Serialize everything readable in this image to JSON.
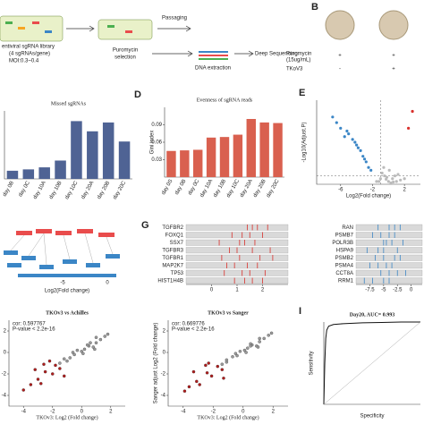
{
  "panel_a": {
    "library": "entiviral sgRNA library",
    "library_detail": "(4 sgRNAs/gene)",
    "moi": "MOI:0.3~0.4",
    "passaging": "Passaging",
    "puromycin": "Puromycin",
    "selection": "selection",
    "dna": "DNA extraction",
    "sequencing": "Deep Sequencing"
  },
  "panel_b": {
    "letter": "B",
    "puromycin": "Puromycin",
    "dose": "(15ug/mL)",
    "cell": "TKoV3",
    "row1": [
      "+",
      "+"
    ],
    "row2": [
      "-",
      "+"
    ]
  },
  "panel_f": {
    "x_label": "Log2(Fold change)",
    "ticks": [
      -5,
      0
    ]
  },
  "chart_data": [
    {
      "type": "bar",
      "title": "Missed sgRNAs",
      "color": "#4f6394",
      "categories": [
        "day 0B",
        "day 0C",
        "day 10A",
        "day 10B",
        "day 10C",
        "day 20A",
        "day 20B",
        "day 20C"
      ],
      "values": [
        12,
        14,
        17,
        27,
        85,
        70,
        83,
        55
      ],
      "ylim": [
        0,
        100
      ]
    },
    {
      "type": "bar",
      "panel": "D",
      "title": "Evenness of sgRNA reads",
      "y_label": "Gini index",
      "color": "#d9604f",
      "categories": [
        "day 0S",
        "day 0B",
        "day 0C",
        "day 10A",
        "day 10B",
        "day 10C",
        "day 20A",
        "day 20B",
        "day 20C"
      ],
      "values": [
        0.045,
        0.046,
        0.047,
        0.068,
        0.069,
        0.073,
        0.1,
        0.094,
        0.093
      ],
      "ylim": [
        0,
        0.12
      ],
      "yticks": [
        0.03,
        0.06,
        0.09
      ]
    },
    {
      "type": "scatter",
      "panel": "E",
      "x_label": "Log2(Fold change)",
      "y_label": "-Log10(Adjust.P)",
      "xlim": [
        -9,
        4
      ],
      "ylim": [
        0,
        30
      ],
      "xticks": [
        -6,
        -2,
        2
      ],
      "series": [
        {
          "color": "#bbbbbb",
          "x": [
            -1.5,
            -1,
            -0.5,
            0,
            0.5,
            1,
            -0.8,
            0.3,
            1.5,
            -0.2,
            0.8,
            -1.2,
            0.1,
            2,
            -0.6,
            0.6,
            1.2,
            -0.3
          ],
          "y": [
            1,
            2,
            3,
            1,
            2,
            1,
            4,
            0.5,
            1.5,
            2.5,
            3,
            1,
            5,
            2,
            6,
            0.8,
            3.5,
            1.8
          ]
        },
        {
          "color": "#3b86c6",
          "x": [
            -2.5,
            -3,
            -3.5,
            -4,
            -4.5,
            -5,
            -5.5,
            -6,
            -6.5,
            -3.2,
            -2.8,
            -4.2,
            -5.2,
            -3.8,
            -2.2,
            -7
          ],
          "y": [
            6,
            9,
            12,
            14,
            16,
            18,
            17,
            20,
            22,
            10,
            8,
            15,
            19,
            13,
            5,
            24
          ]
        },
        {
          "color": "#d9302c",
          "x": [
            2.5,
            3
          ],
          "y": [
            20,
            26
          ]
        }
      ]
    },
    {
      "type": "strip",
      "panel": "G",
      "color": "#d9302c",
      "categories": [
        "TGFBR2",
        "FOXQ1",
        "SSX7",
        "TGFBR3",
        "TGFBR1",
        "MAP2K7",
        "TP53",
        "HIST1H4B"
      ],
      "values": [
        [
          1.4,
          1.6,
          1.8,
          2.2
        ],
        [
          0.8,
          1.2,
          1.5,
          2.0
        ],
        [
          0.3,
          1.1,
          1.3,
          1.7
        ],
        [
          0.7,
          1.0,
          1.6,
          2.3
        ],
        [
          0.4,
          1.1,
          1.9,
          2.4
        ],
        [
          0.6,
          0.9,
          1.4,
          1.8
        ],
        [
          0.5,
          1.2,
          1.5,
          2.1
        ],
        [
          0.9,
          1.3,
          1.6,
          2.0
        ]
      ],
      "xlim": [
        -1,
        3
      ],
      "xticks": [
        0,
        1,
        2
      ]
    },
    {
      "type": "strip",
      "color": "#3b86c6",
      "categories": [
        "RAN",
        "PSMB7",
        "POLR3B",
        "HSPA9",
        "PSMB2",
        "PSMA4",
        "CCT8A",
        "RRM1"
      ],
      "values": [
        [
          -6,
          -4,
          -3,
          -2
        ],
        [
          -7,
          -5.5,
          -4,
          -3
        ],
        [
          -5,
          -4.5,
          -3.5,
          -1.5
        ],
        [
          -8,
          -6,
          -5,
          -2.5
        ],
        [
          -6.5,
          -5,
          -3,
          -2
        ],
        [
          -7.5,
          -6,
          -4.5,
          -3.5
        ],
        [
          -5.5,
          -4,
          -2.5,
          -1
        ],
        [
          -8.5,
          -7,
          -5,
          -4
        ]
      ],
      "xlim": [
        -10,
        2
      ],
      "xticks": [
        -7.5,
        -5,
        -2.5,
        0
      ]
    },
    {
      "type": "scatter",
      "title": "TKOv3 vs Achilles",
      "x_label": "TKOv3: Log2 (Fold change)",
      "annotations": [
        "cor: 0.597767",
        "P-value < 2.2e-16"
      ],
      "xlim": [
        -5,
        3
      ],
      "ylim": [
        -5,
        3
      ],
      "xticks": [
        -4,
        -2,
        0,
        2
      ],
      "yticks": [
        -4,
        -2,
        0,
        2
      ],
      "series": [
        {
          "color": "#9a9a9a",
          "x": [
            -1,
            -0.5,
            0,
            0.5,
            1,
            -1.5,
            -0.8,
            0.2,
            0.8,
            1.3,
            -0.3,
            0.6,
            1.6,
            -1.2,
            0.1,
            0.4,
            1,
            -0.6,
            1.8,
            0.9
          ],
          "y": [
            -0.8,
            -0.2,
            0.1,
            0.6,
            0.9,
            -1,
            -0.5,
            0.3,
            0.5,
            1.2,
            0.2,
            0.9,
            1.5,
            -0.6,
            -0.1,
            0.7,
            1.4,
            0,
            1.7,
            0.3
          ]
        },
        {
          "color": "#b01c1c",
          "x": [
            -3,
            -2.5,
            -2,
            -1.8,
            -3.5,
            -2.2,
            -1.5,
            -2.8,
            -4,
            -1.2,
            -2.6,
            -3.2
          ],
          "y": [
            -2.5,
            -1.8,
            -2,
            -1.2,
            -3,
            -0.8,
            -1.5,
            -2.9,
            -3.5,
            -2.2,
            -1.1,
            -1.6
          ]
        }
      ]
    },
    {
      "type": "scatter",
      "title": "TKOv3 vs Sanger",
      "x_label": "TKOv3: Log2 (Fold change)",
      "y_label": "Sanger adjust Log2 (Fold change)",
      "annotations": [
        "cor: 0.669776",
        "P-value < 2.2e-16"
      ],
      "xlim": [
        -5,
        3
      ],
      "ylim": [
        -5,
        3
      ],
      "xticks": [
        -4,
        -2,
        0,
        2
      ],
      "yticks": [
        -4,
        -2,
        0,
        2
      ],
      "series": [
        {
          "color": "#9a9a9a",
          "x": [
            -1.1,
            -0.4,
            0.1,
            0.6,
            1.1,
            -1.4,
            -0.7,
            0.3,
            0.9,
            1.4,
            -0.2,
            0.5,
            1.7,
            -1.1,
            0.2,
            0.5,
            1.1,
            -0.5,
            1.9,
            1
          ],
          "y": [
            -0.9,
            -0.3,
            0.2,
            0.7,
            1,
            -1.1,
            -0.4,
            0.4,
            0.6,
            1.3,
            0.1,
            0.8,
            1.6,
            -0.7,
            0,
            0.6,
            1.3,
            -0.1,
            1.8,
            0.5
          ]
        },
        {
          "color": "#b01c1c",
          "x": [
            -3.1,
            -2.4,
            -2.1,
            -1.7,
            -3.6,
            -2.3,
            -1.4,
            -2.9,
            -3.9,
            -1.3,
            -2.5,
            -3.3
          ],
          "y": [
            -2.7,
            -1.9,
            -2.2,
            -1.3,
            -3.2,
            -1,
            -1.6,
            -3,
            -3.6,
            -2.4,
            -1.2,
            -1.8
          ]
        }
      ]
    },
    {
      "type": "line",
      "panel": "I",
      "title": "Day20, AUC= 0.993",
      "x_label": "Specificity",
      "y_label": "Sensitivity",
      "xlim": [
        1,
        0
      ],
      "ylim": [
        0,
        1
      ],
      "x": [
        1,
        0.99,
        0.98,
        0.97,
        0.95,
        0.9,
        0.8,
        0.6,
        0.4,
        0.2,
        0
      ],
      "series": [
        {
          "color": "#111111",
          "values": [
            0,
            0.5,
            0.8,
            0.9,
            0.95,
            0.97,
            0.98,
            0.99,
            0.995,
            1,
            1
          ]
        }
      ]
    }
  ]
}
